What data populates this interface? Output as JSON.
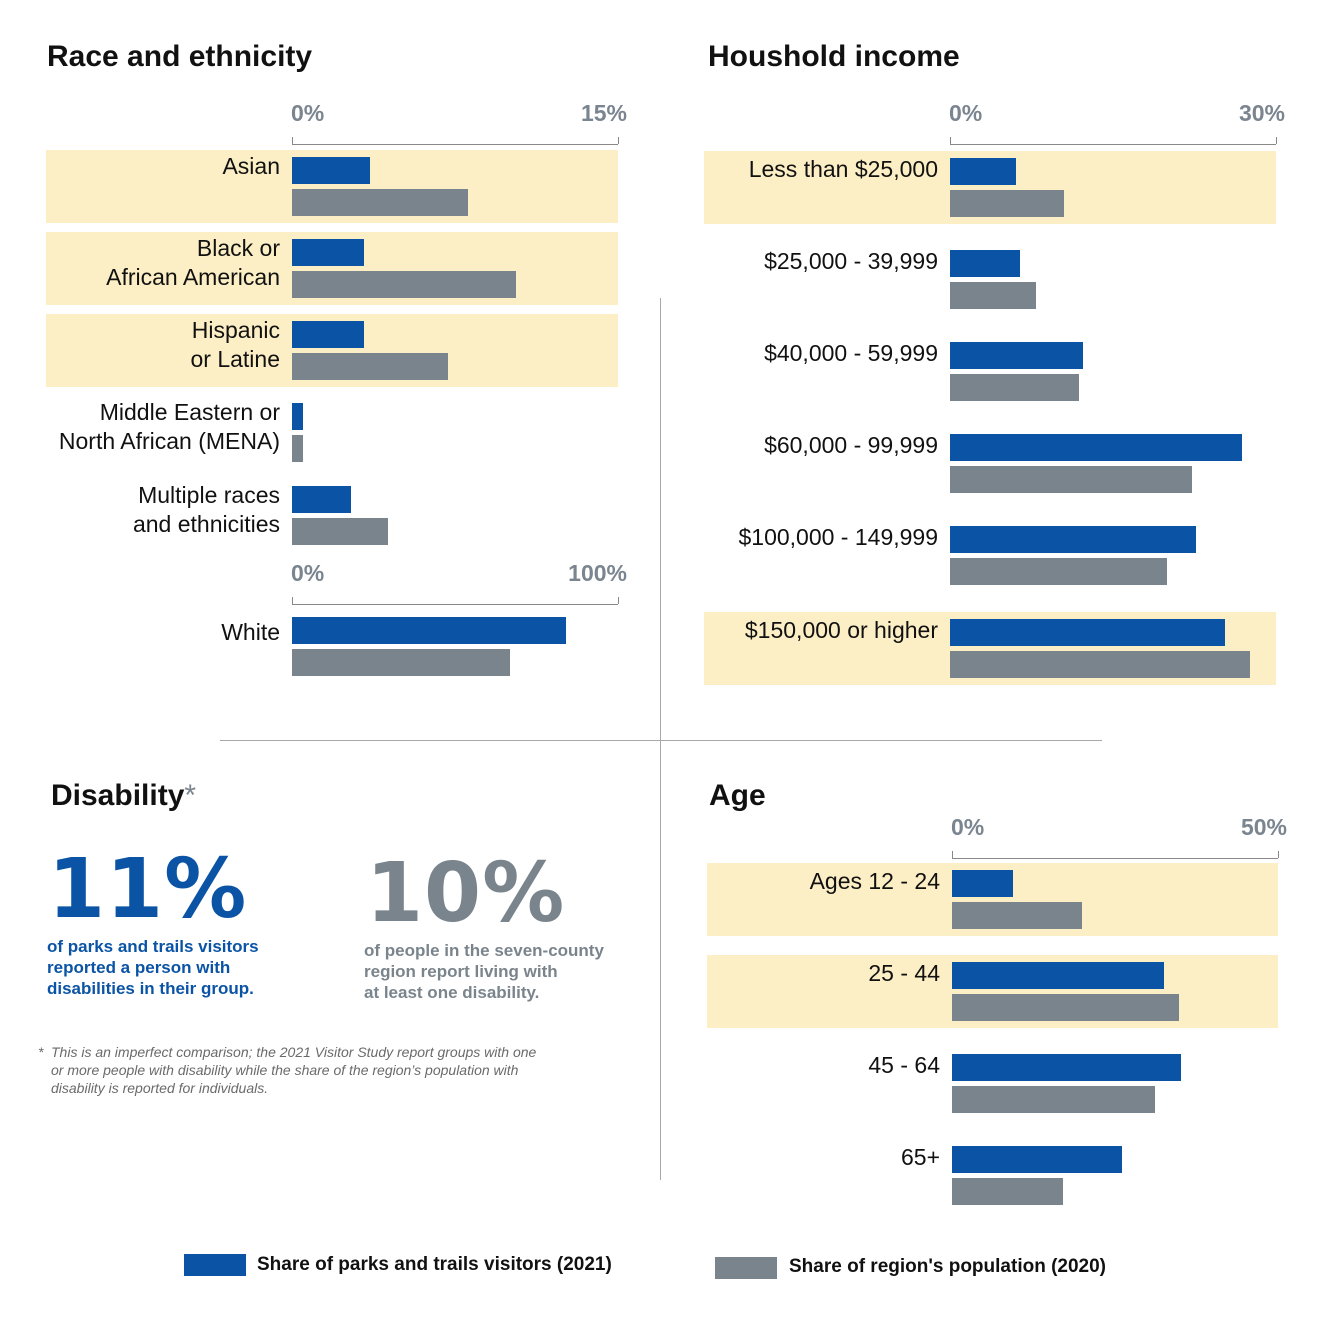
{
  "colors": {
    "visitors": "#0b54a5",
    "population": "#7a848c",
    "band": "#fcefc5",
    "stat_visitors": "#0b54a5",
    "stat_population": "#7a848c"
  },
  "legend": {
    "visitors_label": "Share of parks and trails visitors (2021)",
    "population_label": "Share of region's population (2020)"
  },
  "disability": {
    "title": "Disability",
    "asterisk": "*",
    "visitors_stat": "11%",
    "visitors_desc": "of parks and trails visitors\nreported a person with\ndisabilities in their group.",
    "population_stat": "10%",
    "population_desc": "of people in the seven-county\nregion report living with\nat least one disability.",
    "footnote_mark": "*",
    "footnote": "This is an imperfect comparison; the 2021 Visitor Study report groups with one\nor more people with disability while the share of the region’s population with\ndisability is reported for individuals."
  },
  "chart_data": [
    {
      "type": "bar",
      "orientation": "horizontal",
      "title": "Race and ethnicity",
      "categories": [
        "Asian",
        "Black or\nAfrican American",
        "Hispanic\nor Latine",
        "Middle Eastern or\nNorth African (MENA)",
        "Multiple races\nand ethnicities"
      ],
      "highlighted": [
        true,
        true,
        true,
        false,
        false
      ],
      "xlim": [
        0,
        15
      ],
      "ticks": [
        "0%",
        "15%"
      ],
      "series": [
        {
          "name": "Share of parks and trails visitors (2021)",
          "values": [
            3.6,
            3.3,
            3.3,
            0.5,
            2.7
          ]
        },
        {
          "name": "Share of region's population (2020)",
          "values": [
            8.1,
            10.3,
            7.2,
            0.5,
            4.4
          ]
        }
      ],
      "secondary": {
        "categories": [
          "White"
        ],
        "highlighted": [
          false
        ],
        "xlim": [
          0,
          100
        ],
        "ticks": [
          "0%",
          "100%"
        ],
        "series": [
          {
            "name": "Share of parks and trails visitors (2021)",
            "values": [
              84
            ]
          },
          {
            "name": "Share of region's population (2020)",
            "values": [
              67
            ]
          }
        ]
      }
    },
    {
      "type": "bar",
      "orientation": "horizontal",
      "title": "Houshold income",
      "categories": [
        "Less than $25,000",
        "$25,000 - 39,999",
        "$40,000 - 59,999",
        "$60,000 - 99,999",
        "$100,000 - 149,999",
        "$150,000 or higher"
      ],
      "highlighted": [
        true,
        false,
        false,
        false,
        false,
        true
      ],
      "xlim": [
        0,
        30
      ],
      "ticks": [
        "0%",
        "30%"
      ],
      "series": [
        {
          "name": "Share of parks and trails visitors (2021)",
          "values": [
            6.1,
            6.4,
            12.2,
            26.9,
            22.6,
            25.3
          ]
        },
        {
          "name": "Share of region's population (2020)",
          "values": [
            10.5,
            7.9,
            11.9,
            22.3,
            20.0,
            27.6
          ]
        }
      ]
    },
    {
      "type": "bar",
      "orientation": "horizontal",
      "title": "Age",
      "categories": [
        "Ages 12 - 24",
        "25 - 44",
        "45 - 64",
        "65+"
      ],
      "highlighted": [
        true,
        true,
        false,
        false
      ],
      "xlim": [
        0,
        50
      ],
      "ticks": [
        "0%",
        "50%"
      ],
      "series": [
        {
          "name": "Share of parks and trails visitors (2021)",
          "values": [
            9.4,
            32.5,
            35.1,
            26.0
          ]
        },
        {
          "name": "Share of region's population (2020)",
          "values": [
            19.9,
            34.8,
            31.2,
            17.0
          ]
        }
      ]
    }
  ]
}
